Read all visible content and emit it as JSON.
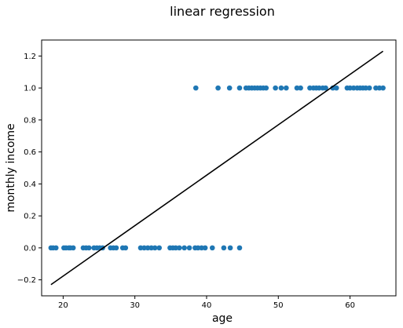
{
  "chart_data": {
    "type": "scatter",
    "title": "linear regression",
    "xlabel": "age",
    "ylabel": "monthly income",
    "xlim": [
      17.0,
      66.4
    ],
    "ylim": [
      -0.3,
      1.3
    ],
    "xticks": [
      20,
      30,
      40,
      50,
      60
    ],
    "yticks": [
      -0.2,
      0.0,
      0.2,
      0.4,
      0.6,
      0.8,
      1.0,
      1.2
    ],
    "ytick_labels": [
      "−0.2",
      "0.0",
      "0.2",
      "0.4",
      "0.6",
      "0.8",
      "1.0",
      "1.2"
    ],
    "grid": false,
    "legend": "none",
    "series": [
      {
        "kind": "scatter",
        "color": "#1f77b4",
        "points": [
          [
            18.3,
            0
          ],
          [
            18.6,
            0
          ],
          [
            19.0,
            0
          ],
          [
            20.1,
            0
          ],
          [
            20.4,
            0
          ],
          [
            20.8,
            0
          ],
          [
            21.0,
            0
          ],
          [
            21.4,
            0
          ],
          [
            22.8,
            0
          ],
          [
            23.2,
            0
          ],
          [
            23.6,
            0
          ],
          [
            24.3,
            0
          ],
          [
            24.7,
            0
          ],
          [
            25.1,
            0
          ],
          [
            25.5,
            0
          ],
          [
            26.6,
            0
          ],
          [
            27.0,
            0
          ],
          [
            27.4,
            0
          ],
          [
            28.3,
            0
          ],
          [
            28.7,
            0
          ],
          [
            30.8,
            0
          ],
          [
            31.3,
            0
          ],
          [
            31.8,
            0
          ],
          [
            32.3,
            0
          ],
          [
            32.8,
            0
          ],
          [
            33.4,
            0
          ],
          [
            34.9,
            0
          ],
          [
            35.3,
            0
          ],
          [
            35.7,
            0
          ],
          [
            36.2,
            0
          ],
          [
            36.9,
            0
          ],
          [
            37.6,
            0
          ],
          [
            38.4,
            0
          ],
          [
            38.8,
            0
          ],
          [
            39.3,
            0
          ],
          [
            39.8,
            0
          ],
          [
            40.8,
            0
          ],
          [
            42.4,
            0
          ],
          [
            43.3,
            0
          ],
          [
            44.6,
            0
          ],
          [
            38.5,
            1
          ],
          [
            41.6,
            1
          ],
          [
            43.2,
            1
          ],
          [
            44.6,
            1
          ],
          [
            45.5,
            1
          ],
          [
            45.9,
            1
          ],
          [
            46.3,
            1
          ],
          [
            46.7,
            1
          ],
          [
            47.1,
            1
          ],
          [
            47.5,
            1
          ],
          [
            47.9,
            1
          ],
          [
            48.3,
            1
          ],
          [
            49.6,
            1
          ],
          [
            50.4,
            1
          ],
          [
            51.1,
            1
          ],
          [
            52.6,
            1
          ],
          [
            53.1,
            1
          ],
          [
            54.4,
            1
          ],
          [
            54.9,
            1
          ],
          [
            55.3,
            1
          ],
          [
            55.7,
            1
          ],
          [
            56.2,
            1
          ],
          [
            56.6,
            1
          ],
          [
            57.6,
            1
          ],
          [
            58.1,
            1
          ],
          [
            59.6,
            1
          ],
          [
            60.0,
            1
          ],
          [
            60.5,
            1
          ],
          [
            61.0,
            1
          ],
          [
            61.4,
            1
          ],
          [
            61.8,
            1
          ],
          [
            62.2,
            1
          ],
          [
            62.7,
            1
          ],
          [
            63.6,
            1
          ],
          [
            64.1,
            1
          ],
          [
            64.6,
            1
          ]
        ]
      },
      {
        "kind": "line",
        "color": "#000000",
        "x": [
          18.3,
          64.6
        ],
        "y": [
          -0.23,
          1.23
        ]
      }
    ]
  }
}
